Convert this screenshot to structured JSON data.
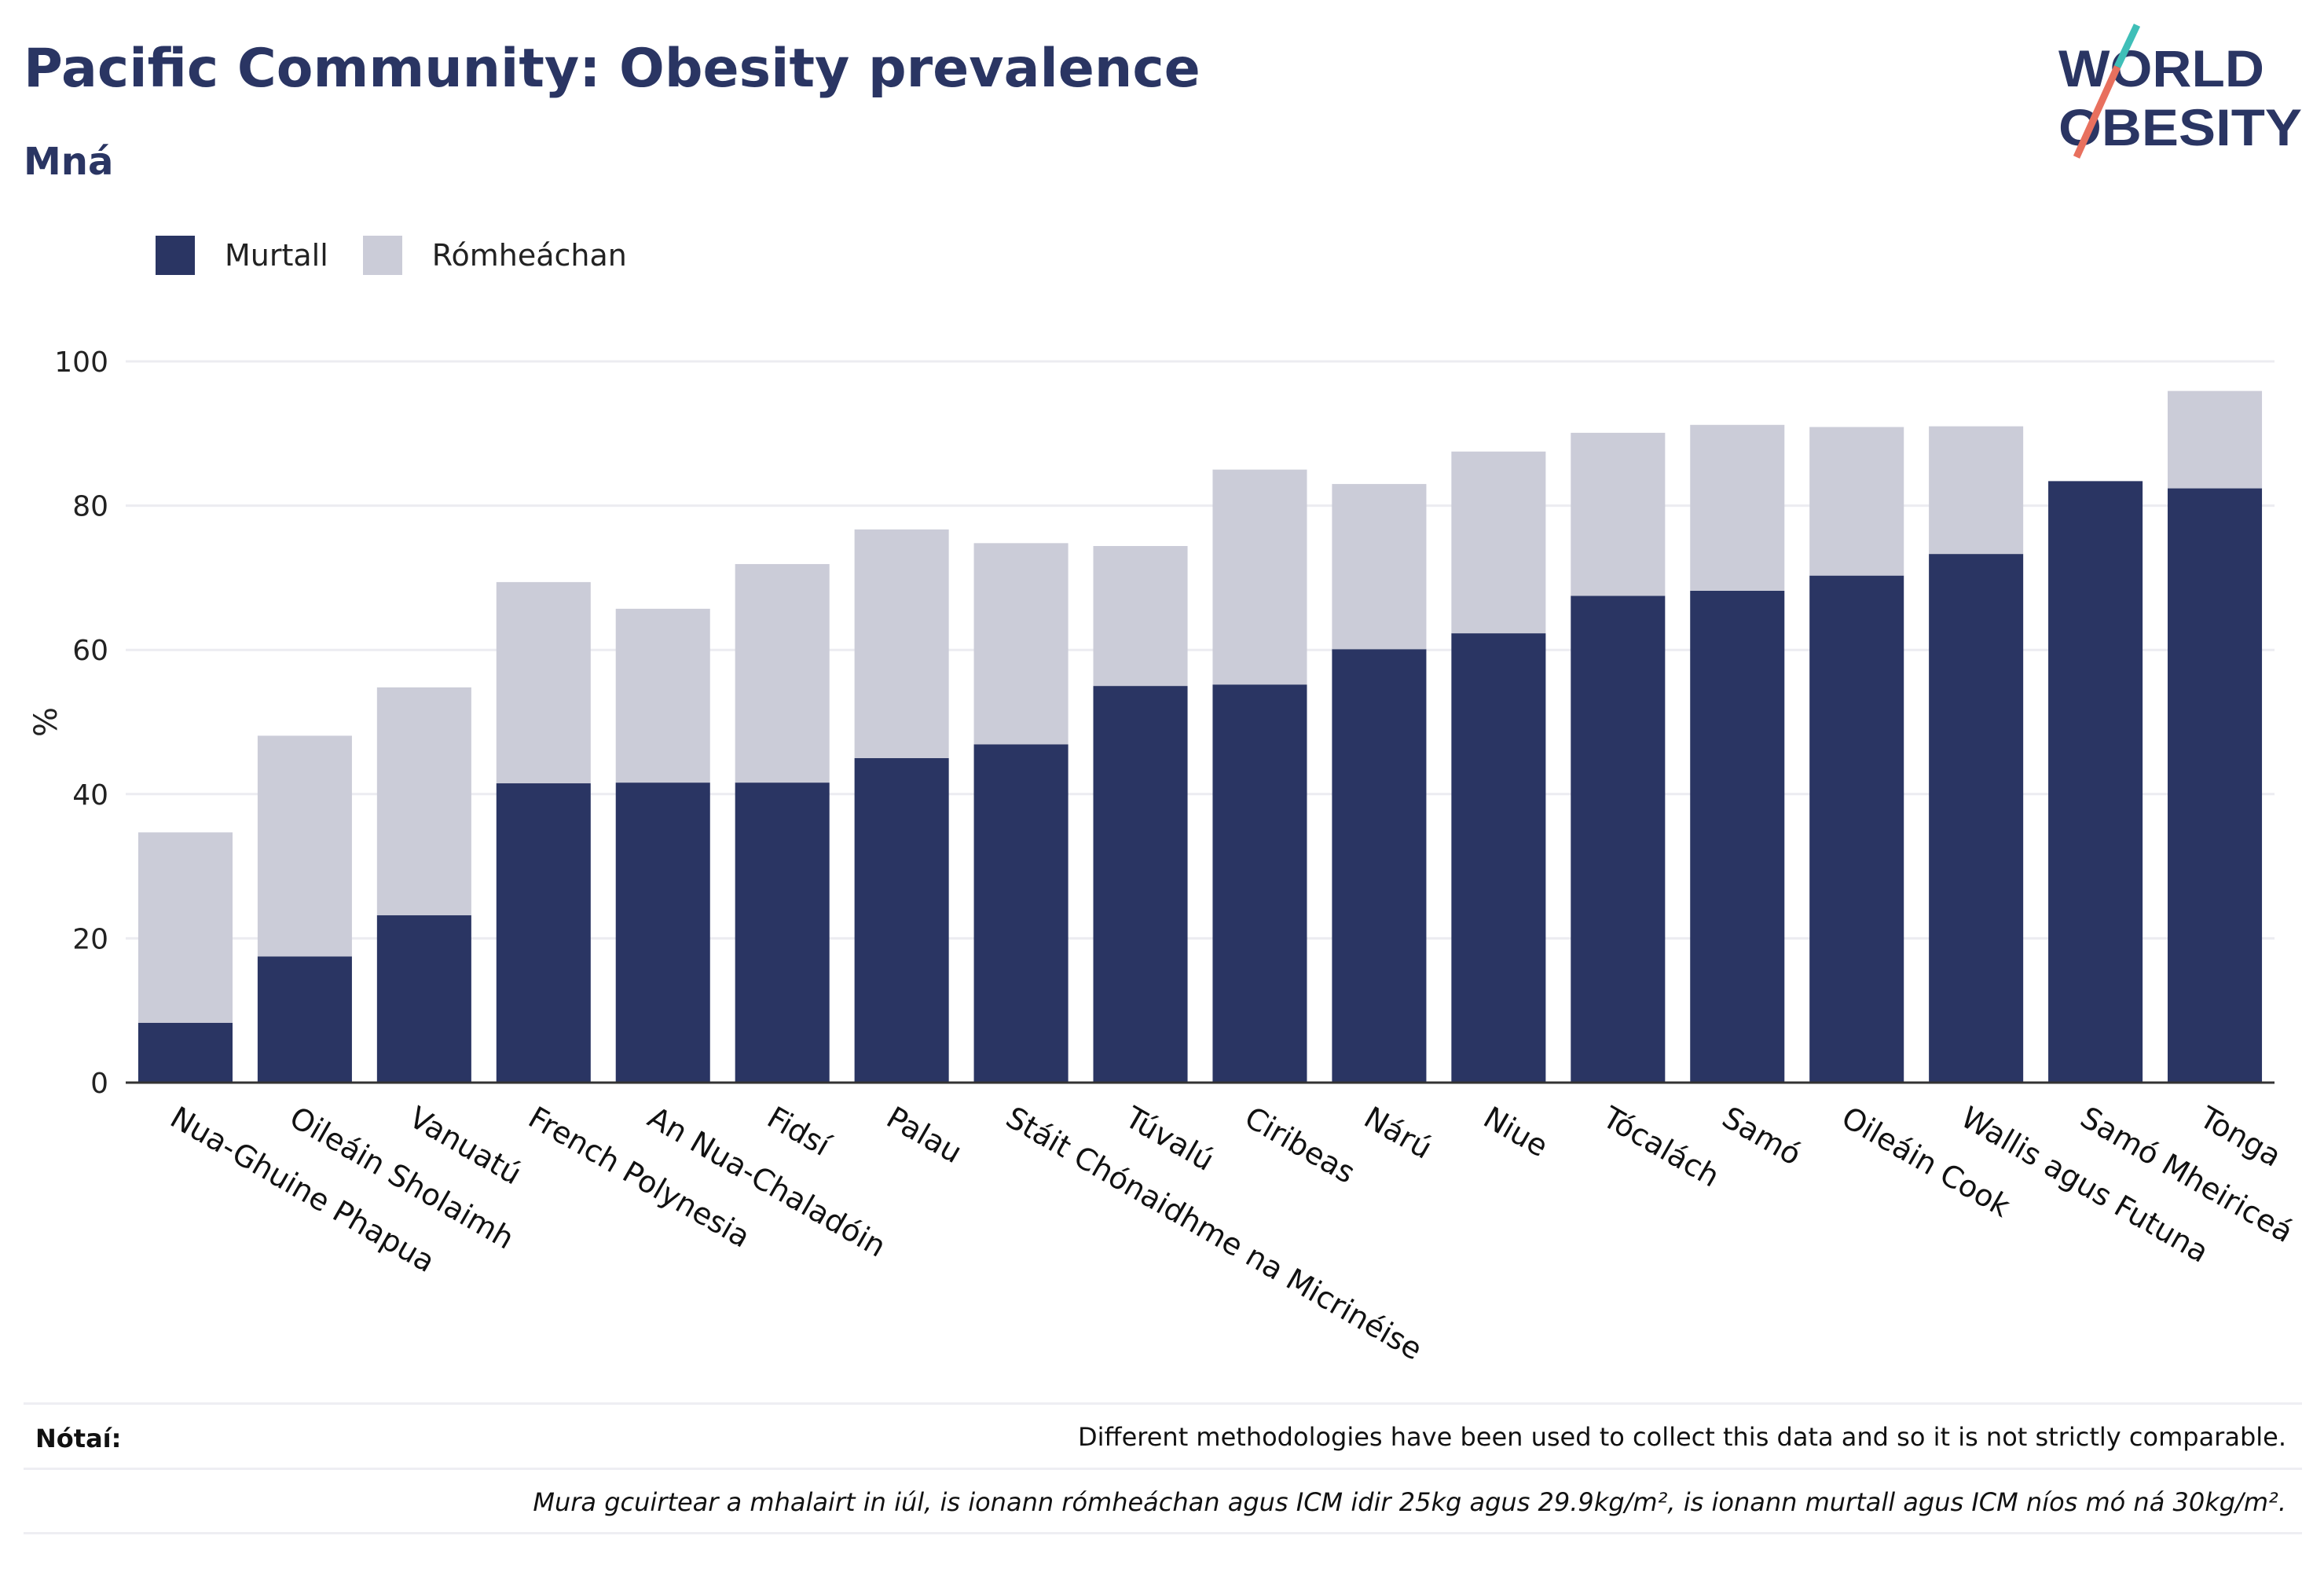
{
  "header": {
    "title": "Pacific Community: Obesity prevalence",
    "subtitle": "Mná"
  },
  "logo": {
    "line1": "WORLD",
    "line2": "OBESITY",
    "slash_colors": [
      "#3fbfb8",
      "#e8705e"
    ]
  },
  "colors": {
    "obesity": "#2a3563",
    "overweight": "#cbccd8",
    "text": "#2a3563"
  },
  "legend": [
    {
      "label": "Murtall",
      "color": "#2a3563"
    },
    {
      "label": "Rómheáchan",
      "color": "#cbccd8"
    }
  ],
  "notes": {
    "label": "Nótaí:",
    "line1": "Different methodologies have been used to collect this data and so it is not strictly comparable.",
    "line2": "Mura gcuirtear a mhalairt in iúl, is ionann rómheáchan agus ICM idir 25kg agus 29.9kg/m², is ionann murtall agus ICM níos mó ná 30kg/m²."
  },
  "chart_data": {
    "type": "bar",
    "stacked": true,
    "ylabel": "%",
    "ylim": [
      0,
      100
    ],
    "yticks": [
      0,
      20,
      40,
      60,
      80,
      100
    ],
    "grid": true,
    "legend_position": "top-left",
    "categories": [
      "Nua-Ghuine Phapua",
      "Oileáin Sholaimh",
      "Vanuatú",
      "French Polynesia",
      "An Nua-Chaladóin",
      "Fidsí",
      "Palau",
      "Stáit Chónaidhme na Micrinéise",
      "Túvalú",
      "Ciribeas",
      "Nárú",
      "Niue",
      "Tócalách",
      "Samó",
      "Oileáin Cook",
      "Wallis agus Futuna",
      "Samó Mheiriceá",
      "Tonga"
    ],
    "series": [
      {
        "name": "Murtall",
        "values": [
          8.3,
          17.5,
          23.2,
          41.5,
          41.6,
          41.6,
          45.0,
          46.9,
          55.0,
          55.2,
          60.1,
          62.3,
          67.5,
          68.2,
          70.3,
          73.3,
          83.4,
          82.4
        ]
      },
      {
        "name": "Rómheáchan",
        "values": [
          26.4,
          30.6,
          31.6,
          27.9,
          24.1,
          30.3,
          31.7,
          27.9,
          19.4,
          29.8,
          22.9,
          25.2,
          22.6,
          23.0,
          20.6,
          17.7,
          0.0,
          13.5
        ]
      }
    ]
  }
}
